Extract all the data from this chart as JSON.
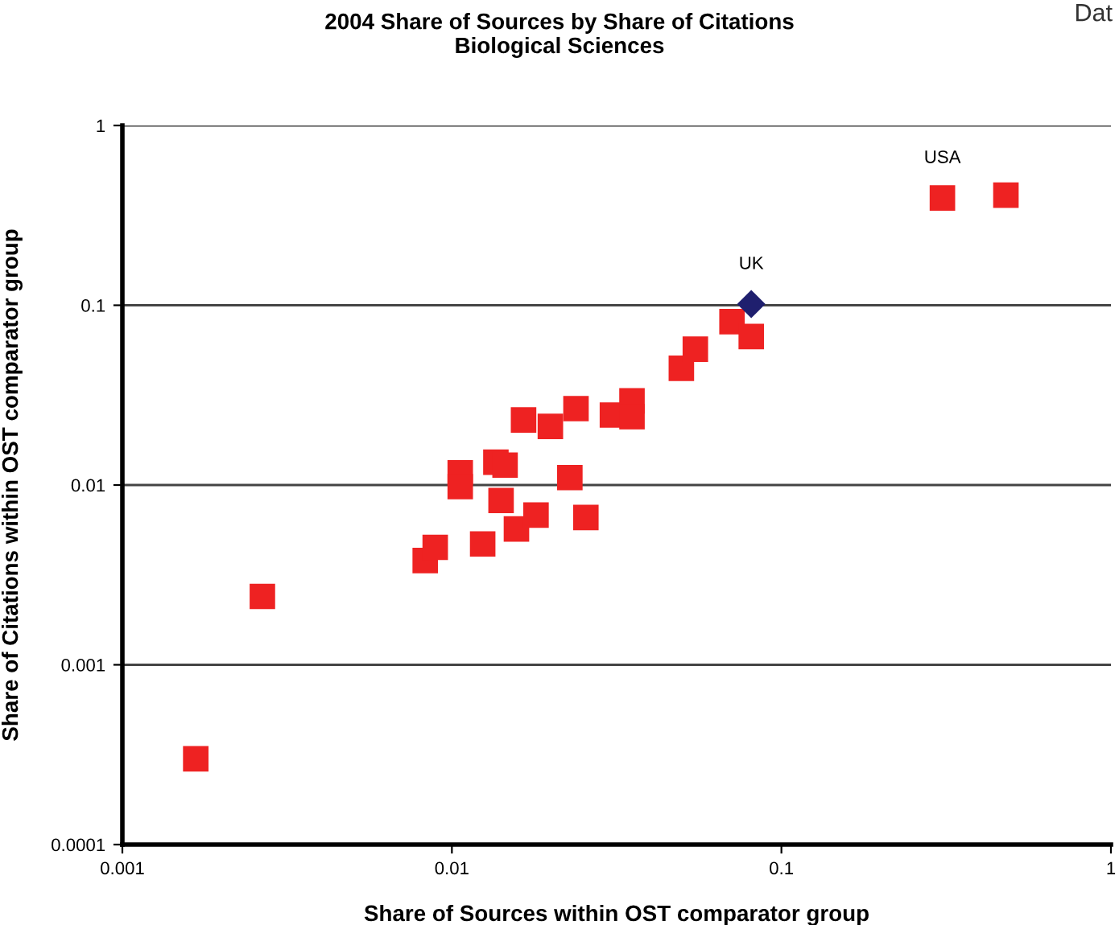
{
  "chart_data": {
    "type": "scatter",
    "title": "2004 Share of Sources by Share of Citations\nBiological Sciences",
    "xlabel": "Share of Sources within OST comparator group",
    "ylabel": "Share of Citations within OST comparator group",
    "log": "xy",
    "grid": "y",
    "legend": false,
    "xlim": [
      0.001,
      1
    ],
    "ylim": [
      0.0001,
      1
    ],
    "xticks": [
      0.001,
      0.01,
      0.1,
      1
    ],
    "yticks": [
      0.0001,
      0.001,
      0.01,
      0.1,
      1
    ],
    "series": [
      {
        "color": "#ee2222",
        "marker": "square",
        "x": [
          0.00167,
          0.00266,
          0.0083,
          0.0089,
          0.0106,
          0.0106,
          0.0124,
          0.0136,
          0.0141,
          0.0145,
          0.0157,
          0.0165,
          0.018,
          0.0199,
          0.0228,
          0.0238,
          0.0255,
          0.0307,
          0.0352,
          0.0352,
          0.0497,
          0.0548,
          0.0708,
          0.081,
          0.308,
          0.48
        ],
        "values": [
          0.0003,
          0.0024,
          0.0038,
          0.0045,
          0.0117,
          0.0098,
          0.0047,
          0.0134,
          0.0082,
          0.0129,
          0.0057,
          0.023,
          0.0068,
          0.0212,
          0.011,
          0.0266,
          0.0066,
          0.0245,
          0.0294,
          0.024,
          0.0446,
          0.057,
          0.081,
          0.067,
          0.395,
          0.41
        ]
      },
      {
        "color": "#1f1f6e",
        "marker": "diamond",
        "x": [
          0.081
        ],
        "values": [
          0.1016
        ]
      }
    ],
    "annotations": [
      {
        "text": "USA",
        "x": 0.308,
        "y": 0.395
      },
      {
        "text": "UK",
        "x": 0.081,
        "y": 0.1016
      },
      "Dat"
    ]
  }
}
